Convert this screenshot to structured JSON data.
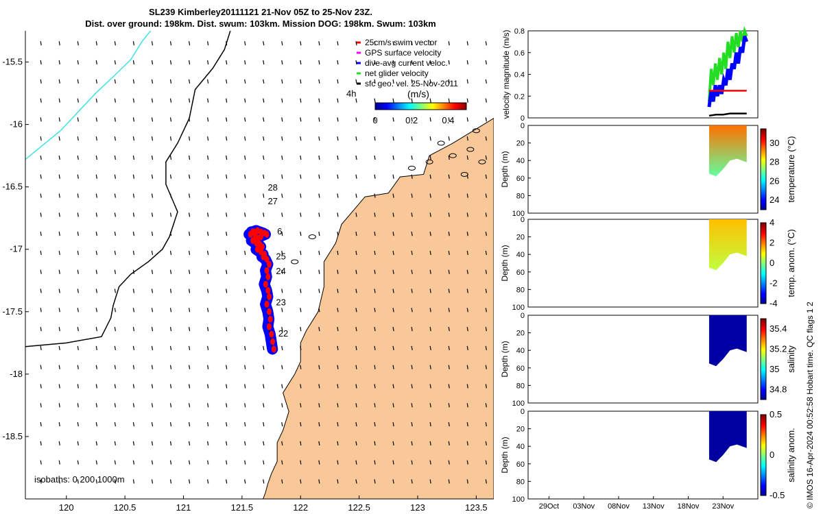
{
  "title": {
    "line1": "SL239 Kimberley20111121 21-Nov 05Z to 25-Nov 23Z.",
    "line2": "Dist. over ground: 198km. Dist. swum: 103km. Mission DOG: 198km. Swum: 103km"
  },
  "colors": {
    "land": "#F8C898",
    "track_blue": "#0000FF",
    "track_red": "#FF0000",
    "isobath_200": "#000000",
    "isobath_1000": "#40E0E0",
    "net_velocity": "#22DD22",
    "speed_black": "#000000",
    "deep_blue": "#0A1A7A"
  },
  "chart_data": [
    {
      "type": "scatter",
      "name": "map",
      "xlim": [
        119.65,
        123.65
      ],
      "ylim": [
        -19.0,
        -15.25
      ],
      "xticks": [
        "120",
        "120.5",
        "121",
        "121.5",
        "122",
        "122.5",
        "123",
        "123.5"
      ],
      "xtick_values": [
        120,
        120.5,
        121,
        121.5,
        122,
        122.5,
        123,
        123.5
      ],
      "yticks": [
        "-15.5",
        "-16",
        "-16.5",
        "-17",
        "-17.5",
        "-18",
        "-18.5"
      ],
      "ytick_values": [
        -15.5,
        -16,
        -16.5,
        -17,
        -17.5,
        -18,
        -18.5
      ],
      "isobath_label": "isobaths: 0   200  1000m",
      "legend": {
        "entries": [
          "25cm/s swim vector",
          "GPS surface velocity",
          "dive-avg current veloc.",
          "net glider velocity",
          "sfc geo. vel. 25-Nov-2011"
        ],
        "entry_colors": [
          "#FF0000",
          "#FF00FF",
          "#0000FF",
          "#22DD22",
          "#000000"
        ],
        "time_label": "4h",
        "colorbar_label": "(m/s)",
        "colorbar_ticks": [
          "0",
          "0.2",
          "0.4"
        ],
        "colorbar_tick_values": [
          0,
          0.2,
          0.4
        ],
        "colorbar_range": [
          0,
          0.5
        ]
      },
      "day_labels": [
        {
          "text": "28",
          "lon": 121.72,
          "lat": -16.53
        },
        {
          "text": "27",
          "lon": 121.72,
          "lat": -16.64
        },
        {
          "text": "6",
          "lon": 121.8,
          "lat": -16.88
        },
        {
          "text": "25",
          "lon": 121.79,
          "lat": -17.08
        },
        {
          "text": "24",
          "lon": 121.79,
          "lat": -17.2
        },
        {
          "text": "23",
          "lon": 121.79,
          "lat": -17.45
        },
        {
          "text": "22",
          "lon": 121.81,
          "lat": -17.7
        }
      ],
      "track_lon": [
        121.76,
        121.75,
        121.74,
        121.72,
        121.73,
        121.72,
        121.7,
        121.72,
        121.71,
        121.69,
        121.71,
        121.7,
        121.72,
        121.7,
        121.67,
        121.68,
        121.65,
        121.62,
        121.66,
        121.64,
        121.61,
        121.58,
        121.63,
        121.6,
        121.56,
        121.59,
        121.62,
        121.65,
        121.68,
        121.7,
        121.65,
        121.6,
        121.58
      ],
      "track_lat": [
        -17.8,
        -17.74,
        -17.68,
        -17.62,
        -17.56,
        -17.5,
        -17.44,
        -17.38,
        -17.33,
        -17.28,
        -17.22,
        -17.17,
        -17.12,
        -17.08,
        -17.06,
        -17.04,
        -17.02,
        -17.0,
        -16.98,
        -16.96,
        -16.95,
        -16.93,
        -16.91,
        -16.9,
        -16.88,
        -16.86,
        -16.85,
        -16.86,
        -16.87,
        -16.88,
        -16.9,
        -16.88,
        -16.86
      ],
      "isobath_200_lon": [
        121.4,
        121.35,
        121.25,
        121.1,
        121.05,
        120.95,
        120.85,
        120.85,
        120.95,
        120.88,
        120.82,
        120.7,
        120.55,
        120.45,
        120.4,
        120.38,
        120.3,
        120.0,
        119.65
      ],
      "isobath_200_lat": [
        -15.25,
        -15.4,
        -15.55,
        -15.72,
        -15.95,
        -16.15,
        -16.3,
        -16.48,
        -16.7,
        -16.9,
        -17.0,
        -17.1,
        -17.2,
        -17.3,
        -17.45,
        -17.55,
        -17.7,
        -17.75,
        -17.78
      ],
      "isobath_1000_lon": [
        120.72,
        120.65,
        120.55,
        120.42,
        120.25,
        119.95,
        119.65
      ],
      "isobath_1000_lat": [
        -15.25,
        -15.33,
        -15.48,
        -15.6,
        -15.75,
        -16.05,
        -16.28
      ],
      "coast_lon": [
        123.65,
        123.3,
        123.1,
        123.05,
        122.85,
        122.75,
        122.55,
        122.35,
        122.3,
        122.2,
        122.2,
        122.15,
        122.05,
        122.0,
        122.0,
        121.95,
        121.85,
        121.9,
        121.85,
        121.8,
        121.8,
        121.75,
        121.72,
        121.7,
        121.68,
        121.6,
        121.55,
        121.55,
        123.65
      ],
      "coast_lat": [
        -15.95,
        -16.15,
        -16.25,
        -16.4,
        -16.42,
        -16.55,
        -16.58,
        -16.8,
        -16.95,
        -17.1,
        -17.3,
        -17.5,
        -17.65,
        -17.75,
        -17.9,
        -18.0,
        -18.15,
        -18.3,
        -18.45,
        -18.55,
        -18.7,
        -18.8,
        -18.88,
        -18.95,
        -19.0,
        -19.0,
        -19.0,
        -19.0,
        -19.0
      ]
    },
    {
      "type": "line",
      "name": "velocity",
      "ylabel": "velocity magnitude (m/s)",
      "ylim": [
        0,
        0.8
      ],
      "yticks": [
        "0",
        "0.2",
        "0.4",
        "0.6",
        "0.8"
      ],
      "ytick_values": [
        0,
        0.2,
        0.4,
        0.6,
        0.8
      ],
      "x_days": [
        0,
        5,
        10,
        15,
        20,
        25
      ],
      "xlim": [
        -3,
        30
      ],
      "series": [
        {
          "name": "net glider velocity",
          "color": "#22DD22",
          "x": [
            23,
            23.3,
            23.6,
            23.9,
            24.2,
            24.5,
            24.8,
            25.1,
            25.4,
            25.7,
            26,
            26.3,
            26.6,
            26.9,
            27.2,
            27.5,
            27.8,
            28.1,
            28.4
          ],
          "values": [
            0.15,
            0.45,
            0.3,
            0.5,
            0.35,
            0.55,
            0.4,
            0.6,
            0.45,
            0.7,
            0.55,
            0.75,
            0.6,
            0.78,
            0.65,
            0.8,
            0.7,
            0.8,
            0.75
          ]
        },
        {
          "name": "dive-avg current veloc.",
          "color": "#0000FF",
          "x": [
            23,
            23.3,
            23.6,
            23.9,
            24.2,
            24.5,
            24.8,
            25.1,
            25.4,
            25.7,
            26,
            26.3,
            26.6,
            26.9,
            27.2,
            27.5,
            27.8,
            28.1,
            28.4
          ],
          "values": [
            0.1,
            0.25,
            0.15,
            0.3,
            0.2,
            0.3,
            0.22,
            0.35,
            0.3,
            0.45,
            0.35,
            0.5,
            0.45,
            0.6,
            0.5,
            0.65,
            0.6,
            0.75,
            0.7
          ]
        },
        {
          "name": "25cm/s swim vector",
          "color": "#FF0000",
          "x": [
            23,
            24,
            25,
            26,
            27,
            28,
            28.4
          ],
          "values": [
            0.25,
            0.25,
            0.25,
            0.25,
            0.25,
            0.25,
            0.25
          ]
        },
        {
          "name": "sfc geo. vel.",
          "color": "#000000",
          "x": [
            23,
            24,
            25,
            26,
            27,
            28,
            28.4
          ],
          "values": [
            0.02,
            0.03,
            0.03,
            0.04,
            0.04,
            0.04,
            0.04
          ]
        }
      ]
    },
    {
      "type": "heatmap",
      "name": "temperature",
      "ylabel": "Depth (m)",
      "colorbar_label": "temperature (°C)",
      "colorbar_ticks": [
        "30",
        "28",
        "26",
        "24"
      ],
      "colorbar_tick_values": [
        30,
        28,
        26,
        24
      ],
      "colorbar_range": [
        23,
        31.5
      ],
      "yticks": [
        "0",
        "20",
        "40",
        "60",
        "80",
        "100"
      ],
      "ytick_values": [
        0,
        20,
        40,
        60,
        80,
        100
      ],
      "x_days": [
        23,
        24,
        25,
        26,
        27,
        28.4
      ],
      "bottom_depth": [
        55,
        58,
        50,
        40,
        38,
        42
      ],
      "surface_value": 29.5,
      "deep_value": 27.0
    },
    {
      "type": "heatmap",
      "name": "temp_anom",
      "ylabel": "Depth (m)",
      "colorbar_label": "temp. anom. (°C)",
      "colorbar_ticks": [
        "4",
        "2",
        "0",
        "-2",
        "-4"
      ],
      "colorbar_tick_values": [
        4,
        2,
        0,
        -2,
        -4
      ],
      "colorbar_range": [
        -4,
        4
      ],
      "yticks": [
        "0",
        "20",
        "40",
        "60",
        "80",
        "100"
      ],
      "ytick_values": [
        0,
        20,
        40,
        60,
        80,
        100
      ],
      "x_days": [
        23,
        24,
        25,
        26,
        27,
        28.4
      ],
      "bottom_depth": [
        55,
        58,
        50,
        40,
        38,
        42
      ],
      "surface_value": 1.5,
      "deep_value": 0.5
    },
    {
      "type": "heatmap",
      "name": "salinity",
      "ylabel": "Depth (m)",
      "colorbar_label": "salinity",
      "colorbar_ticks": [
        "35.4",
        "35.2",
        "35",
        "34.8"
      ],
      "colorbar_tick_values": [
        35.4,
        35.2,
        35,
        34.8
      ],
      "colorbar_range": [
        34.7,
        35.5
      ],
      "yticks": [
        "0",
        "20",
        "40",
        "60",
        "80",
        "100"
      ],
      "ytick_values": [
        0,
        20,
        40,
        60,
        80,
        100
      ],
      "x_days": [
        23,
        24,
        25,
        26,
        27,
        28.4
      ],
      "bottom_depth": [
        55,
        58,
        50,
        40,
        38,
        42
      ],
      "surface_value": 34.72,
      "deep_value": 34.72
    },
    {
      "type": "heatmap",
      "name": "salinity_anom",
      "ylabel": "Depth (m)",
      "colorbar_label": "salinity anom.",
      "colorbar_ticks": [
        "0.5",
        "0",
        "-0.5"
      ],
      "colorbar_tick_values": [
        0.5,
        0,
        -0.5
      ],
      "colorbar_range": [
        -0.5,
        0.5
      ],
      "yticks": [
        "0",
        "20",
        "40",
        "60",
        "80",
        "100"
      ],
      "ytick_values": [
        0,
        20,
        40,
        60,
        80,
        100
      ],
      "xticks": [
        "29Oct",
        "03Nov",
        "08Nov",
        "13Nov",
        "18Nov",
        "23Nov"
      ],
      "xtick_values": [
        0,
        5,
        10,
        15,
        20,
        25
      ],
      "x_days": [
        23,
        24,
        25,
        26,
        27,
        28.4
      ],
      "bottom_depth": [
        55,
        58,
        50,
        40,
        38,
        42
      ],
      "surface_value": -0.48,
      "deep_value": -0.48
    }
  ],
  "footer": {
    "qc_label": "© IMOS 16-Apr-2024 00:52:58 Hobart time. QC flags 1  2"
  }
}
